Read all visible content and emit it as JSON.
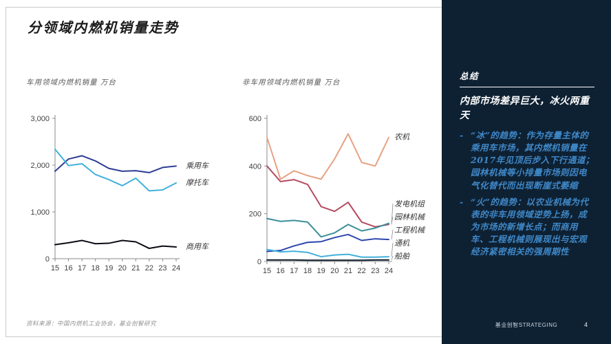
{
  "title": "分领域内燃机销量走势",
  "source": "资料来源：中国内燃机工业协会，基业创智研究",
  "colors": {
    "sidebar_bg": "#0e2133",
    "accent_blue": "#3f88c8",
    "white_text": "#ffffff",
    "axis_gray": "#8a8a8a"
  },
  "sidebar": {
    "heading": "总结",
    "lead": "内部市场差异巨大，冰火两重天",
    "bullet_marker": "-",
    "bullets": [
      "“冰”的趋势：作为存量主体的乘用车市场，其内燃机销量在2017年见顶后步入下行通道；园林机械等小排量市场则因电气化替代而出现断崖式萎缩",
      "“火”的趋势：以农业机械为代表的非车用领域逆势上扬，成为市场的新增长点；而商用车、工程机械则展现出与宏观经济紧密相关的强周期性"
    ]
  },
  "footer": {
    "brand": "基业创智STRATEGING",
    "page": "4"
  },
  "chart_data": [
    {
      "type": "line",
      "title": "车用领域内燃机销量 万台",
      "categories": [
        "15",
        "16",
        "17",
        "18",
        "19",
        "20",
        "21",
        "22",
        "23",
        "24"
      ],
      "ylim": [
        0,
        3000
      ],
      "yticks": [
        0,
        1000,
        2000,
        3000
      ],
      "ytick_labels": [
        "0",
        "1,000",
        "2,000",
        "3,000"
      ],
      "grid": false,
      "legend_position": "right-of-line",
      "series": [
        {
          "name": "乘用车",
          "color": "#2c3c94",
          "label_placement": "line",
          "values": [
            1870,
            2130,
            2200,
            2090,
            1930,
            1870,
            1880,
            1840,
            1950,
            1980
          ]
        },
        {
          "name": "摩托车",
          "color": "#41b0dc",
          "label_placement": "line",
          "values": [
            2340,
            1990,
            2030,
            1800,
            1690,
            1560,
            1720,
            1450,
            1470,
            1620
          ]
        },
        {
          "name": "商用车",
          "color": "#0b0b14",
          "label_placement": "line",
          "values": [
            300,
            340,
            390,
            320,
            330,
            390,
            360,
            220,
            270,
            250
          ]
        }
      ]
    },
    {
      "type": "line",
      "title": "非车用领域内燃机销量 万台",
      "categories": [
        "15",
        "16",
        "17",
        "18",
        "19",
        "20",
        "21",
        "22",
        "23",
        "24"
      ],
      "ylim": [
        0,
        600
      ],
      "yticks": [
        0,
        200,
        400,
        600
      ],
      "ytick_labels": [
        "0",
        "200",
        "400",
        "600"
      ],
      "grid": false,
      "legend_position": "right-of-line",
      "series": [
        {
          "name": "农机",
          "color": "#e7a182",
          "label_placement": "line",
          "values": [
            520,
            345,
            380,
            360,
            345,
            430,
            535,
            415,
            400,
            520
          ]
        },
        {
          "name": "发电机组",
          "color": "#b44a5f",
          "label_placement": "stack",
          "values": [
            400,
            335,
            343,
            323,
            230,
            210,
            248,
            165,
            145,
            155
          ]
        },
        {
          "name": "园林机械",
          "color": "#3b8f9a",
          "label_placement": "stack",
          "values": [
            180,
            168,
            172,
            165,
            103,
            120,
            155,
            128,
            140,
            160
          ]
        },
        {
          "name": "工程机械",
          "color": "#2b46ad",
          "label_placement": "stack",
          "values": [
            42,
            46,
            65,
            80,
            83,
            100,
            113,
            88,
            95,
            92
          ]
        },
        {
          "name": "通机",
          "color": "#41b0dc",
          "label_placement": "stack",
          "values": [
            50,
            40,
            43,
            38,
            20,
            27,
            30,
            18,
            18,
            20
          ]
        },
        {
          "name": "船舶",
          "color": "#0e1b2b",
          "label_placement": "stack",
          "values": [
            6,
            6,
            6,
            5,
            5,
            5,
            5,
            5,
            6,
            6
          ]
        }
      ]
    }
  ]
}
